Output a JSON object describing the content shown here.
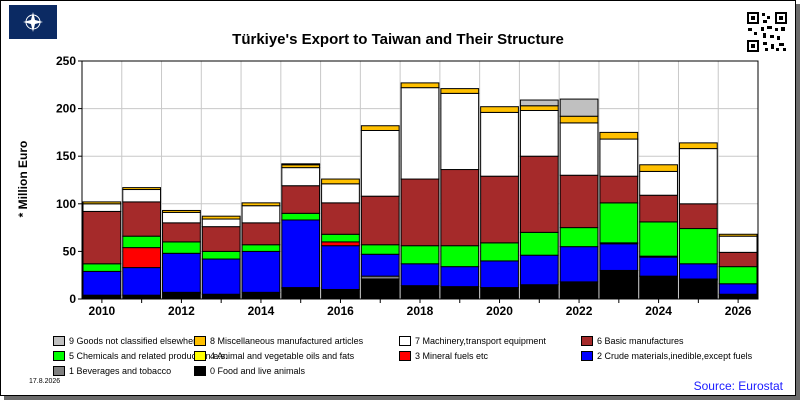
{
  "header": {
    "title": "Türkiye's Export to Taiwan and Their Structure",
    "ylabel": "* Million Euro",
    "date": "17.8.2026",
    "source": "Source: Eurostat"
  },
  "chart_data": {
    "type": "bar",
    "stacked": true,
    "title": "Türkiye's Export to Taiwan and Their Structure",
    "xlabel": "",
    "ylabel": "* Million Euro",
    "ylim": [
      0,
      250
    ],
    "yticks": [
      0,
      50,
      100,
      150,
      200,
      250
    ],
    "grid": true,
    "categories": [
      "2010",
      "2011",
      "2012",
      "2013",
      "2014",
      "2015",
      "2016",
      "2017",
      "2018",
      "2019",
      "2020",
      "2021",
      "2022",
      "2023",
      "2024",
      "2025",
      "2026"
    ],
    "xtick_labels": [
      "2010",
      "",
      "2012",
      "",
      "2014",
      "",
      "2016",
      "",
      "2018",
      "",
      "2020",
      "",
      "2022",
      "",
      "2024",
      "",
      "2026"
    ],
    "series": [
      {
        "name": "0 Food and live animals",
        "color": "#000000",
        "values": [
          4,
          4,
          6,
          5,
          7,
          11,
          10,
          21,
          14,
          13,
          12,
          15,
          18,
          30,
          24,
          20,
          5
        ]
      },
      {
        "name": "1 Beverages and tobacco",
        "color": "#808080",
        "values": [
          0,
          0,
          1,
          0,
          0,
          1,
          0,
          3,
          0,
          0,
          0,
          0,
          0,
          0,
          0,
          1,
          0
        ]
      },
      {
        "name": "2 Crude materials,inedible,except fuels",
        "color": "#0000ff",
        "values": [
          25,
          29,
          41,
          37,
          43,
          71,
          46,
          23,
          23,
          21,
          28,
          31,
          37,
          28,
          20,
          16,
          11
        ]
      },
      {
        "name": "3 Mineral fuels etc",
        "color": "#ff0000",
        "values": [
          0,
          21,
          0,
          0,
          0,
          0,
          4,
          0,
          0,
          0,
          0,
          0,
          0,
          0,
          0,
          0,
          0
        ]
      },
      {
        "name": "4 Animal and vegetable oils and fats",
        "color": "#ffff00",
        "values": [
          0,
          0,
          0,
          0,
          0,
          0,
          0,
          0,
          0,
          0,
          0,
          0,
          0,
          1,
          1,
          0,
          0
        ]
      },
      {
        "name": "5 Chemicals and related products,n.e.s.",
        "color": "#00ff00",
        "values": [
          8,
          12,
          12,
          8,
          7,
          7,
          8,
          10,
          19,
          22,
          19,
          24,
          20,
          42,
          36,
          37,
          18
        ]
      },
      {
        "name": "6 Basic manufactures",
        "color": "#a52a2a",
        "values": [
          55,
          36,
          20,
          26,
          23,
          29,
          33,
          51,
          70,
          80,
          70,
          80,
          55,
          28,
          28,
          26,
          15
        ]
      },
      {
        "name": "7 Machinery,transport equipment",
        "color": "#ffffff",
        "values": [
          8,
          13,
          11,
          8,
          18,
          19,
          20,
          69,
          96,
          80,
          67,
          48,
          55,
          39,
          25,
          58,
          17
        ]
      },
      {
        "name": "8 Miscellaneous manufactured articles",
        "color": "#ffc000",
        "values": [
          2,
          2,
          2,
          3,
          3,
          3,
          5,
          5,
          5,
          5,
          6,
          5,
          7,
          7,
          7,
          6,
          2
        ]
      },
      {
        "name": "9 Goods not classified elsewhere",
        "color": "#c0c0c0",
        "values": [
          0,
          0,
          0,
          0,
          0,
          1,
          0,
          0,
          0,
          0,
          0,
          6,
          18,
          0,
          0,
          0,
          0
        ]
      }
    ],
    "legend_position": "bottom"
  }
}
